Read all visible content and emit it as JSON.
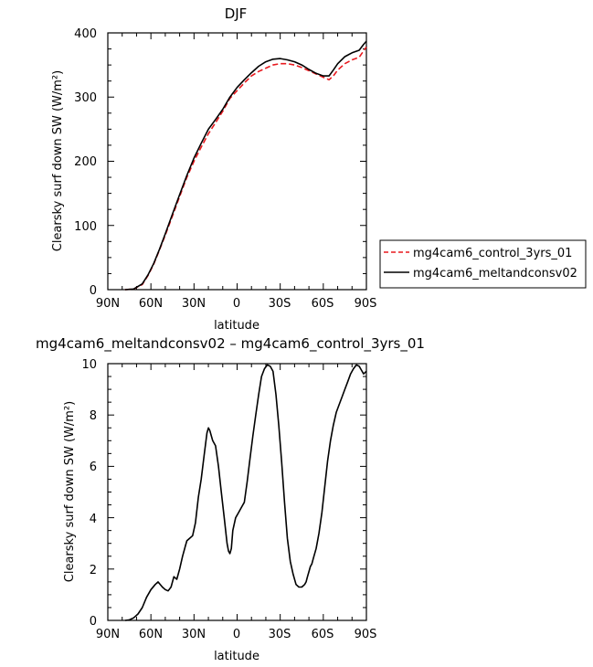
{
  "chart_data": [
    {
      "type": "line",
      "title": "DJF",
      "xlabel": "latitude",
      "ylabel": "Clearsky surf down SW (W/m²)",
      "xlim": [
        90,
        -90
      ],
      "ylim": [
        0,
        400
      ],
      "x_ticks": [
        90,
        60,
        30,
        0,
        -30,
        -60,
        -90
      ],
      "x_tick_labels": [
        "90N",
        "60N",
        "30N",
        "0",
        "30S",
        "60S",
        "90S"
      ],
      "y_ticks": [
        0,
        100,
        200,
        300,
        400
      ],
      "y_tick_labels": [
        "0",
        "100",
        "200",
        "300",
        "400"
      ],
      "legend_position": "right",
      "series": [
        {
          "name": "mg4cam6_control_3yrs_01",
          "color": "#e8191e",
          "dash": "dashed",
          "x": [
            78,
            72,
            66,
            62,
            58,
            54,
            50,
            45,
            40,
            35,
            30,
            25,
            20,
            15,
            10,
            5,
            0,
            -5,
            -10,
            -15,
            -20,
            -25,
            -30,
            -35,
            -40,
            -45,
            -50,
            -55,
            -60,
            -64,
            -67,
            -70,
            -75,
            -80,
            -85,
            -88,
            -90
          ],
          "y": [
            0,
            1,
            8,
            22,
            40,
            62,
            85,
            115,
            145,
            175,
            200,
            222,
            243,
            260,
            278,
            298,
            310,
            322,
            333,
            340,
            345,
            350,
            352,
            352,
            350,
            346,
            341,
            336,
            331,
            327,
            333,
            342,
            352,
            358,
            362,
            372,
            378
          ]
        },
        {
          "name": "mg4cam6_meltandconsv02",
          "color": "#000000",
          "dash": "solid",
          "x": [
            78,
            72,
            66,
            62,
            58,
            54,
            50,
            45,
            40,
            35,
            30,
            25,
            20,
            15,
            10,
            5,
            0,
            -5,
            -10,
            -15,
            -20,
            -25,
            -30,
            -35,
            -40,
            -45,
            -50,
            -55,
            -60,
            -64,
            -67,
            -70,
            -75,
            -80,
            -85,
            -88,
            -90
          ],
          "y": [
            0,
            1,
            9,
            23,
            41,
            63,
            87,
            118,
            148,
            178,
            205,
            228,
            250,
            265,
            281,
            300,
            315,
            327,
            338,
            348,
            355,
            359,
            360,
            358,
            355,
            350,
            343,
            337,
            333,
            333,
            342,
            352,
            363,
            369,
            373,
            382,
            387
          ]
        }
      ]
    },
    {
      "type": "line",
      "title": "mg4cam6_meltandconsv02 – mg4cam6_control_3yrs_01",
      "xlabel": "latitude",
      "ylabel": "Clearsky surf down SW (W/m²)",
      "xlim": [
        90,
        -90
      ],
      "ylim": [
        0,
        10
      ],
      "x_ticks": [
        90,
        60,
        30,
        0,
        -30,
        -60,
        -90
      ],
      "x_tick_labels": [
        "90N",
        "60N",
        "30N",
        "0",
        "30S",
        "60S",
        "90S"
      ],
      "y_ticks": [
        0,
        2,
        4,
        6,
        8,
        10
      ],
      "y_tick_labels": [
        "0",
        "2",
        "4",
        "6",
        "8",
        "10"
      ],
      "series": [
        {
          "color": "#000000",
          "dash": "solid",
          "x": [
            78,
            75,
            72,
            69,
            66,
            63,
            60,
            57,
            55,
            52,
            50,
            48,
            46,
            44,
            42,
            40,
            38,
            36,
            35,
            33,
            31,
            29,
            27,
            25,
            23,
            21,
            20,
            19,
            17,
            15,
            13,
            11,
            9,
            7,
            6,
            5,
            4,
            3,
            1,
            0,
            -1,
            -3,
            -5,
            -7,
            -9,
            -11,
            -13,
            -15,
            -17,
            -19,
            -21,
            -23,
            -25,
            -27,
            -29,
            -31,
            -33,
            -35,
            -37,
            -39,
            -41,
            -43,
            -45,
            -47,
            -48,
            -49,
            -50,
            -51,
            -52,
            -53,
            -55,
            -57,
            -59,
            -61,
            -63,
            -65,
            -67,
            -69,
            -71,
            -73,
            -75,
            -77,
            -79,
            -81,
            -83,
            -85,
            -86,
            -87,
            -88,
            -90
          ],
          "y": [
            0,
            0.02,
            0.1,
            0.25,
            0.5,
            0.9,
            1.2,
            1.4,
            1.5,
            1.3,
            1.2,
            1.15,
            1.3,
            1.7,
            1.6,
            2.0,
            2.5,
            2.9,
            3.1,
            3.2,
            3.3,
            3.8,
            4.8,
            5.5,
            6.4,
            7.3,
            7.5,
            7.4,
            7.0,
            6.8,
            6.0,
            5.0,
            4.0,
            3.0,
            2.7,
            2.6,
            2.8,
            3.5,
            4.0,
            4.1,
            4.2,
            4.4,
            4.6,
            5.4,
            6.3,
            7.2,
            8.0,
            8.8,
            9.5,
            9.8,
            9.95,
            9.9,
            9.7,
            8.8,
            7.6,
            6.2,
            4.6,
            3.2,
            2.3,
            1.8,
            1.4,
            1.3,
            1.3,
            1.4,
            1.5,
            1.7,
            1.9,
            2.1,
            2.2,
            2.4,
            2.8,
            3.4,
            4.2,
            5.2,
            6.2,
            7.0,
            7.6,
            8.1,
            8.4,
            8.7,
            9.0,
            9.3,
            9.6,
            9.8,
            9.95,
            9.9,
            9.8,
            9.7,
            9.6,
            9.7
          ]
        }
      ]
    }
  ]
}
